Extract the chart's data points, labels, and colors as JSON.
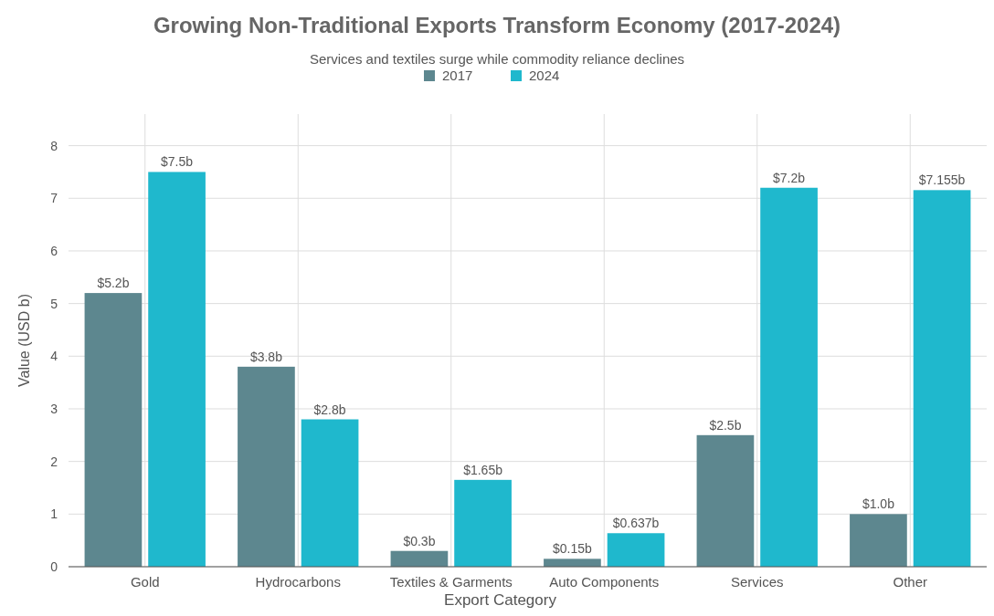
{
  "chart_data": {
    "type": "bar",
    "title": "Growing Non-Traditional Exports Transform Economy (2017-2024)",
    "subtitle": "Services and textiles surge while commodity reliance declines",
    "xlabel": "Export Category",
    "ylabel": "Value (USD b)",
    "categories": [
      "Gold",
      "Hydrocarbons",
      "Textiles & Garments",
      "Auto Components",
      "Services",
      "Other"
    ],
    "series": [
      {
        "name": "2017",
        "color": "#5d878f",
        "values": [
          5.2,
          3.8,
          0.3,
          0.15,
          2.5,
          1.0
        ],
        "value_labels": [
          "$5.2b",
          "$3.8b",
          "$0.3b",
          "$0.15b",
          "$2.5b",
          "$1.0b"
        ]
      },
      {
        "name": "2024",
        "color": "#1fb8cd",
        "values": [
          7.5,
          2.8,
          1.65,
          0.637,
          7.2,
          7.155
        ],
        "value_labels": [
          "$7.5b",
          "$2.8b",
          "$1.65b",
          "$0.637b",
          "$7.2b",
          "$7.155b"
        ]
      }
    ],
    "ylim": [
      0,
      8.6
    ],
    "yticks": [
      0,
      1,
      2,
      3,
      4,
      5,
      6,
      7,
      8
    ],
    "grid": true,
    "legend": "top"
  }
}
